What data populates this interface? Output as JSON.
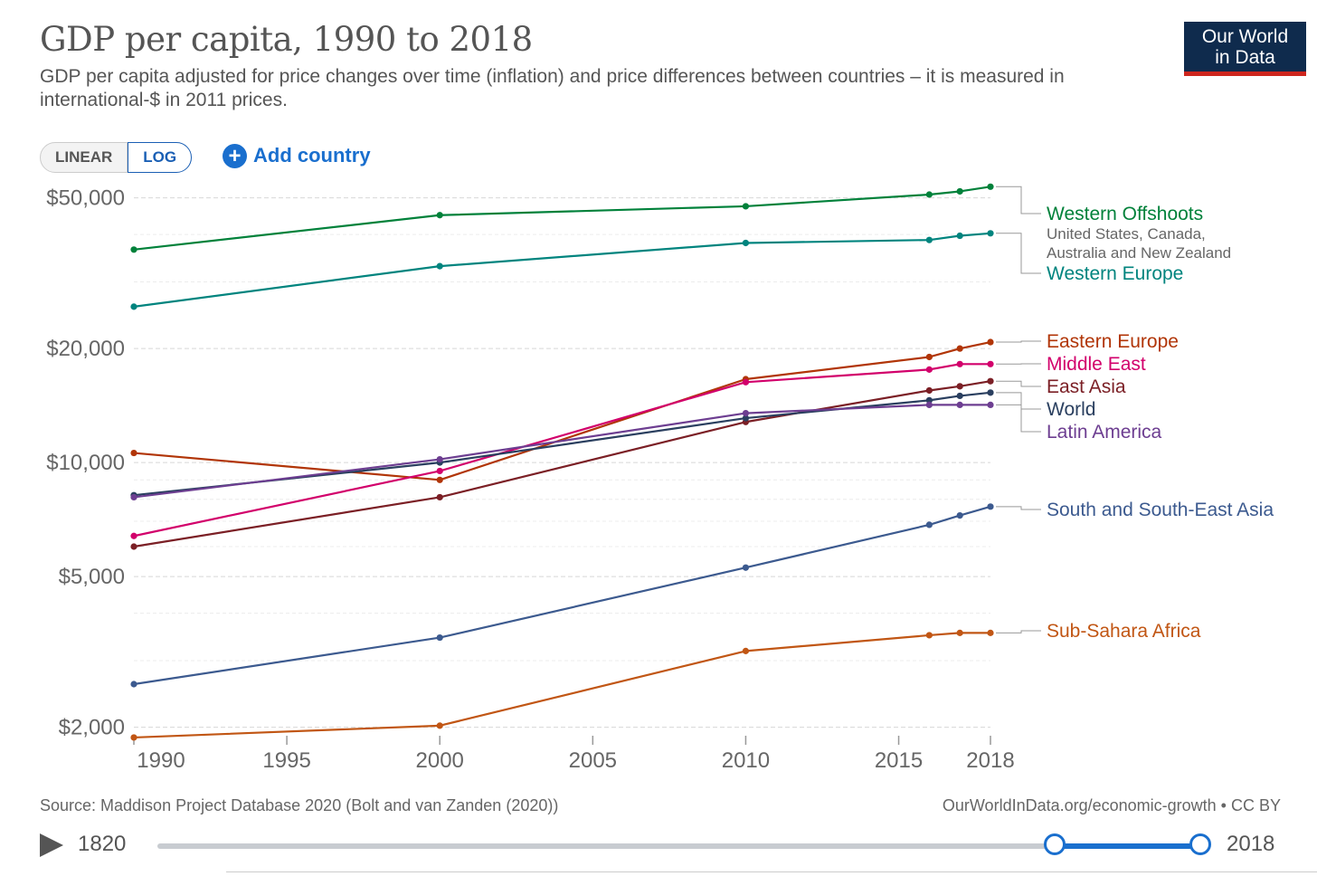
{
  "header": {
    "title": "GDP per capita, 1990 to 2018",
    "subtitle": "GDP per capita adjusted for price changes over time (inflation) and price differences between countries – it is measured in international-$ in 2011 prices.",
    "logo_line1": "Our World",
    "logo_line2": "in Data"
  },
  "controls": {
    "linear_label": "LINEAR",
    "log_label": "LOG",
    "add_country_label": "Add country",
    "add_icon": "plus-circle-icon"
  },
  "footer": {
    "source": "Source: Maddison Project Database 2020 (Bolt and van Zanden (2020))",
    "license": "OurWorldInData.org/economic-growth • CC BY"
  },
  "timeline": {
    "start_year": "1820",
    "end_year": "2018",
    "range_start": 0.86,
    "range_end": 1.0,
    "play_icon": "play-icon"
  },
  "chart_data": {
    "type": "line",
    "scale_y": "log",
    "ylim": [
      1900,
      56000
    ],
    "xlim": [
      1990,
      2018
    ],
    "x_ticks": [
      1990,
      1995,
      2000,
      2005,
      2010,
      2015,
      2018
    ],
    "x_tick_labels": [
      "1990",
      "1995",
      "2000",
      "2005",
      "2010",
      "2015",
      "2018"
    ],
    "y_ticks": [
      2000,
      5000,
      10000,
      20000,
      50000
    ],
    "y_tick_labels": [
      "$2,000",
      "$5,000",
      "$10,000",
      "$20,000",
      "$50,000"
    ],
    "grid": true,
    "x": [
      1990,
      2000,
      2010,
      2016,
      2017,
      2018
    ],
    "series": [
      {
        "name": "Western Offshoots",
        "sublabel": "United States, Canada, Australia and New Zealand",
        "color": "#00813a",
        "values": [
          36500,
          45000,
          47500,
          51000,
          52000,
          53500
        ]
      },
      {
        "name": "Western Europe",
        "color": "#00847e",
        "values": [
          25800,
          33000,
          38000,
          38700,
          39700,
          40300
        ]
      },
      {
        "name": "Eastern Europe",
        "color": "#b13507",
        "values": [
          10600,
          9000,
          16600,
          19000,
          20000,
          20800
        ]
      },
      {
        "name": "Middle East",
        "color": "#d2006b",
        "values": [
          6400,
          9500,
          16300,
          17600,
          18200,
          18200
        ]
      },
      {
        "name": "East Asia",
        "color": "#7b1f25",
        "values": [
          6000,
          8100,
          12800,
          15500,
          15900,
          16400
        ]
      },
      {
        "name": "World",
        "color": "#2a3f5f",
        "values": [
          8200,
          10000,
          13100,
          14600,
          15000,
          15300
        ]
      },
      {
        "name": "Latin America",
        "color": "#6d3e91",
        "values": [
          8100,
          10200,
          13500,
          14200,
          14200,
          14200
        ]
      },
      {
        "name": "South and South-East Asia",
        "color": "#3c5a8f",
        "values": [
          2600,
          3450,
          5280,
          6850,
          7250,
          7650
        ]
      },
      {
        "name": "Sub-Sahara Africa",
        "color": "#c15614",
        "values": [
          1880,
          2020,
          3180,
          3500,
          3550,
          3550
        ]
      }
    ]
  }
}
